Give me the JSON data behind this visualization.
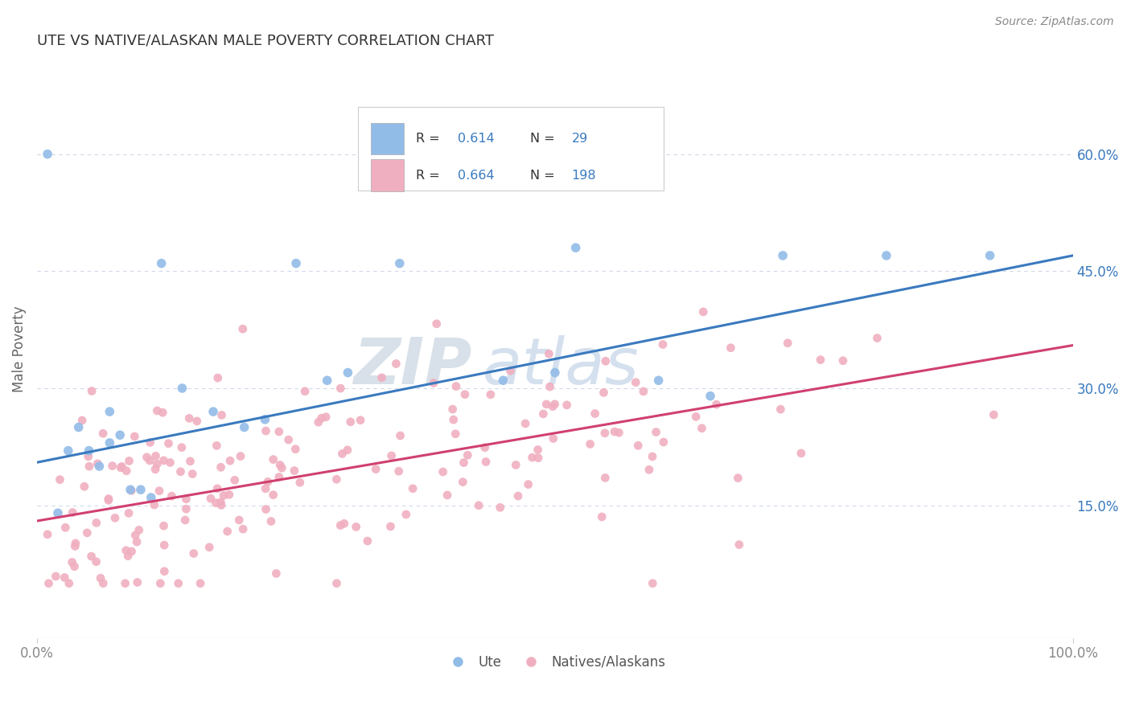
{
  "title": "UTE VS NATIVE/ALASKAN MALE POVERTY CORRELATION CHART",
  "source": "Source: ZipAtlas.com",
  "ylabel": "Male Poverty",
  "xlim": [
    0.0,
    1.0
  ],
  "ylim": [
    -0.02,
    0.72
  ],
  "x_tick_labels": [
    "0.0%",
    "100.0%"
  ],
  "x_tick_values": [
    0.0,
    1.0
  ],
  "y_tick_labels": [
    "15.0%",
    "30.0%",
    "45.0%",
    "60.0%"
  ],
  "y_tick_values": [
    0.15,
    0.3,
    0.45,
    0.6
  ],
  "legend_blue_R": "0.614",
  "legend_blue_N": "29",
  "legend_pink_R": "0.664",
  "legend_pink_N": "198",
  "blue_scatter_color": "#92bce8",
  "pink_scatter_color": "#f0afc0",
  "blue_line_color": "#3a7abf",
  "pink_line_color": "#d04070",
  "blue_line_start_y": 0.205,
  "blue_line_end_y": 0.47,
  "pink_line_start_y": 0.13,
  "pink_line_end_y": 0.355,
  "watermark_zip": "ZIP",
  "watermark_atlas": "atlas",
  "watermark_color": "#c8d8ee",
  "background_color": "#ffffff",
  "grid_color": "#d0d8e8",
  "title_color": "#333333",
  "right_tick_color": "#3a7abf",
  "bottom_tick_color": "#888888"
}
